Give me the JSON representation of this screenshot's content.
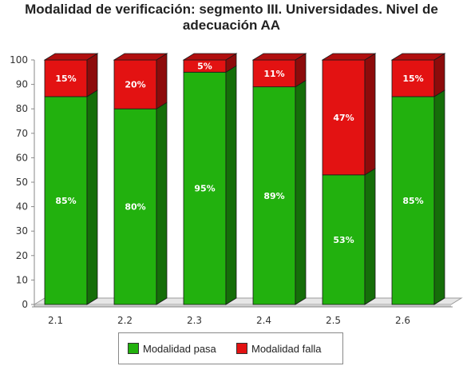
{
  "chart_data": {
    "type": "bar",
    "stacked": true,
    "three_d": true,
    "title": "Modalidad de verificación: segmento III. Universidades. Nivel de adecuación AA",
    "xlabel": "",
    "ylabel": "",
    "ylim": [
      0,
      100
    ],
    "yticks": [
      "0",
      "10",
      "20",
      "30",
      "40",
      "50",
      "60",
      "70",
      "80",
      "90",
      "100"
    ],
    "categories": [
      "2.1",
      "2.2",
      "2.3",
      "2.4",
      "2.5",
      "2.6"
    ],
    "series": [
      {
        "name": "Modalidad pasa",
        "color": "#22b10e",
        "values": [
          85,
          80,
          95,
          89,
          53,
          85
        ],
        "labels": [
          "85%",
          "80%",
          "95%",
          "89%",
          "53%",
          "85%"
        ]
      },
      {
        "name": "Modalidad falla",
        "color": "#e31212",
        "values": [
          15,
          20,
          5,
          11,
          47,
          15
        ],
        "labels": [
          "15%",
          "20%",
          "5%",
          "11%",
          "47%",
          "15%"
        ]
      }
    ],
    "grid": false,
    "legend_position": "bottom"
  }
}
